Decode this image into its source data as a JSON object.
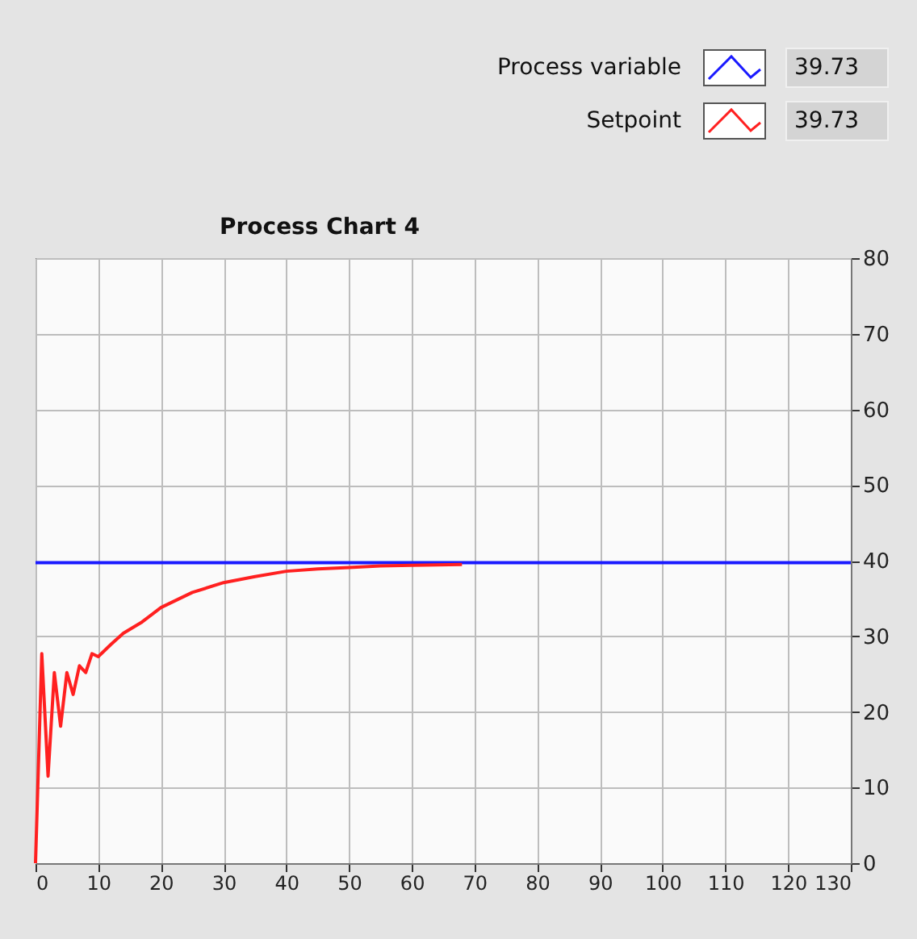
{
  "chart_data": {
    "type": "line",
    "title": "Process Chart 4",
    "series": [
      {
        "name": "Process variable",
        "color": "#1a1aff",
        "x": [
          0,
          130
        ],
        "values": [
          39.73,
          39.73
        ]
      },
      {
        "name": "Setpoint",
        "color": "#ff2020",
        "x": [
          0,
          1,
          2,
          3,
          4,
          5,
          6,
          7,
          8,
          9,
          10,
          12,
          14,
          17,
          20,
          25,
          30,
          35,
          40,
          45,
          50,
          55,
          60,
          68
        ],
        "values": [
          0,
          27.7,
          11.5,
          25.2,
          18.1,
          25.2,
          22.3,
          26.1,
          25.2,
          27.7,
          27.3,
          28.9,
          30.4,
          31.9,
          33.8,
          35.8,
          37.1,
          37.9,
          38.6,
          38.9,
          39.1,
          39.3,
          39.4,
          39.5
        ]
      }
    ],
    "annotations": [
      "39.73",
      "39.73"
    ],
    "xlim": [
      0,
      130
    ],
    "xticks": [
      0,
      10,
      20,
      30,
      40,
      50,
      60,
      70,
      80,
      90,
      100,
      110,
      120,
      130
    ],
    "ylim": [
      0,
      80
    ],
    "yticks": [
      0,
      10,
      20,
      30,
      40,
      50,
      60,
      70,
      80
    ],
    "grid": true,
    "legend": "top right",
    "line_style": "solid",
    "marker": "none"
  }
}
